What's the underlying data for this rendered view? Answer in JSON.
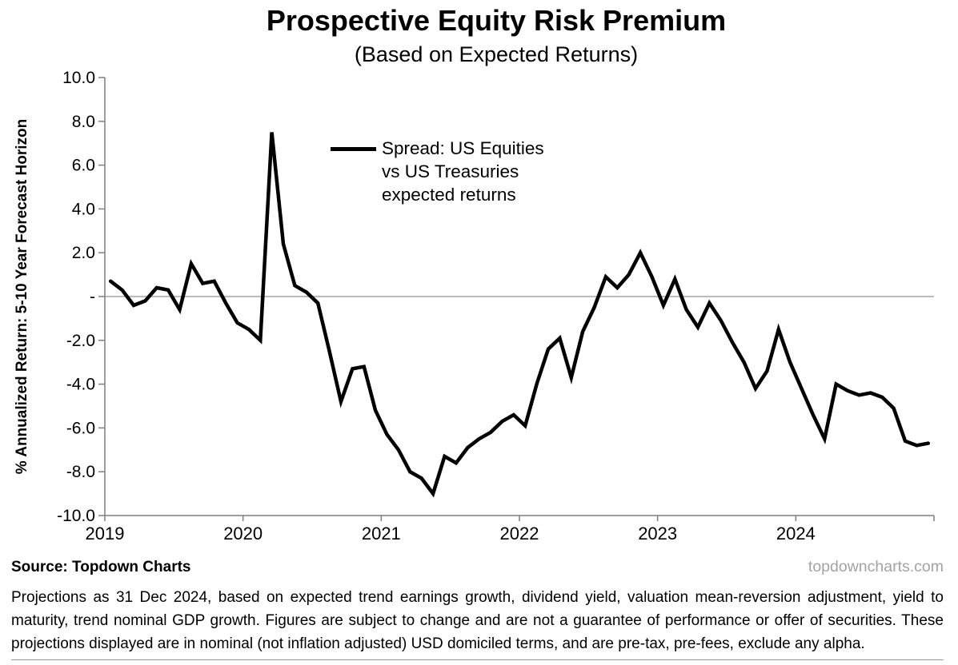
{
  "header": {
    "title": "Prospective Equity Risk Premium",
    "subtitle": "(Based on Expected Returns)"
  },
  "chart_data": {
    "type": "line",
    "title": "Prospective Equity Risk Premium",
    "subtitle": "(Based on Expected Returns)",
    "ylabel": "% Annualized Return: 5-10 Year Forecast Horizon",
    "xlabel": "",
    "ylim": [
      -10,
      10
    ],
    "ytick_step": 2,
    "ytick_labels": [
      "10.0",
      "8.0",
      "6.0",
      "4.0",
      "2.0",
      "-",
      "-2.0",
      "-4.0",
      "-6.0",
      "-8.0",
      "-10.0"
    ],
    "xtick_labels": [
      "2019",
      "2020",
      "2021",
      "2022",
      "2023",
      "2024"
    ],
    "grid": "zero-line-only",
    "legend_position": "inside-top-center",
    "legend_label": "Spread: US Equities vs US Treasuries expected returns",
    "line_color": "#000000",
    "axis_color": "#7f7f7f",
    "zero_line_color": "#a6a6a6",
    "series": [
      {
        "name": "Spread: US Equities vs US Treasuries expected returns",
        "x_start": "2019-01",
        "x_end": "2024-12",
        "frequency": "monthly",
        "values": [
          0.7,
          0.3,
          -0.4,
          -0.2,
          0.4,
          0.3,
          -0.6,
          1.5,
          0.6,
          0.7,
          -0.3,
          -1.2,
          -1.5,
          -2.0,
          7.5,
          2.4,
          0.5,
          0.2,
          -0.3,
          -2.5,
          -4.8,
          -3.3,
          -3.2,
          -5.2,
          -6.3,
          -7.0,
          -8.0,
          -8.3,
          -9.0,
          -7.3,
          -7.6,
          -6.9,
          -6.5,
          -6.2,
          -5.7,
          -5.4,
          -5.9,
          -4.0,
          -2.4,
          -1.9,
          -3.7,
          -1.6,
          -0.5,
          0.9,
          0.4,
          1.0,
          2.0,
          0.9,
          -0.4,
          0.8,
          -0.6,
          -1.4,
          -0.3,
          -1.1,
          -2.1,
          -3.0,
          -4.2,
          -3.4,
          -1.5,
          -3.0,
          -4.2,
          -5.4,
          -6.5,
          -4.0,
          -4.3,
          -4.5,
          -4.4,
          -4.6,
          -5.1,
          -6.6,
          -6.8,
          -6.7
        ]
      }
    ]
  },
  "footer": {
    "source": "Source: Topdown Charts",
    "site": "topdowncharts.com",
    "disclaimer": "Projections as 31 Dec 2024, based on expected trend earnings growth, dividend yield, valuation mean-reversion adjustment, yield to maturity, trend nominal GDP growth.  Figures are subject to change and are not a guarantee of performance or offer of securities. These projections displayed are in nominal (not inflation adjusted) USD domiciled terms, and are pre-tax, pre-fees, exclude any alpha."
  }
}
